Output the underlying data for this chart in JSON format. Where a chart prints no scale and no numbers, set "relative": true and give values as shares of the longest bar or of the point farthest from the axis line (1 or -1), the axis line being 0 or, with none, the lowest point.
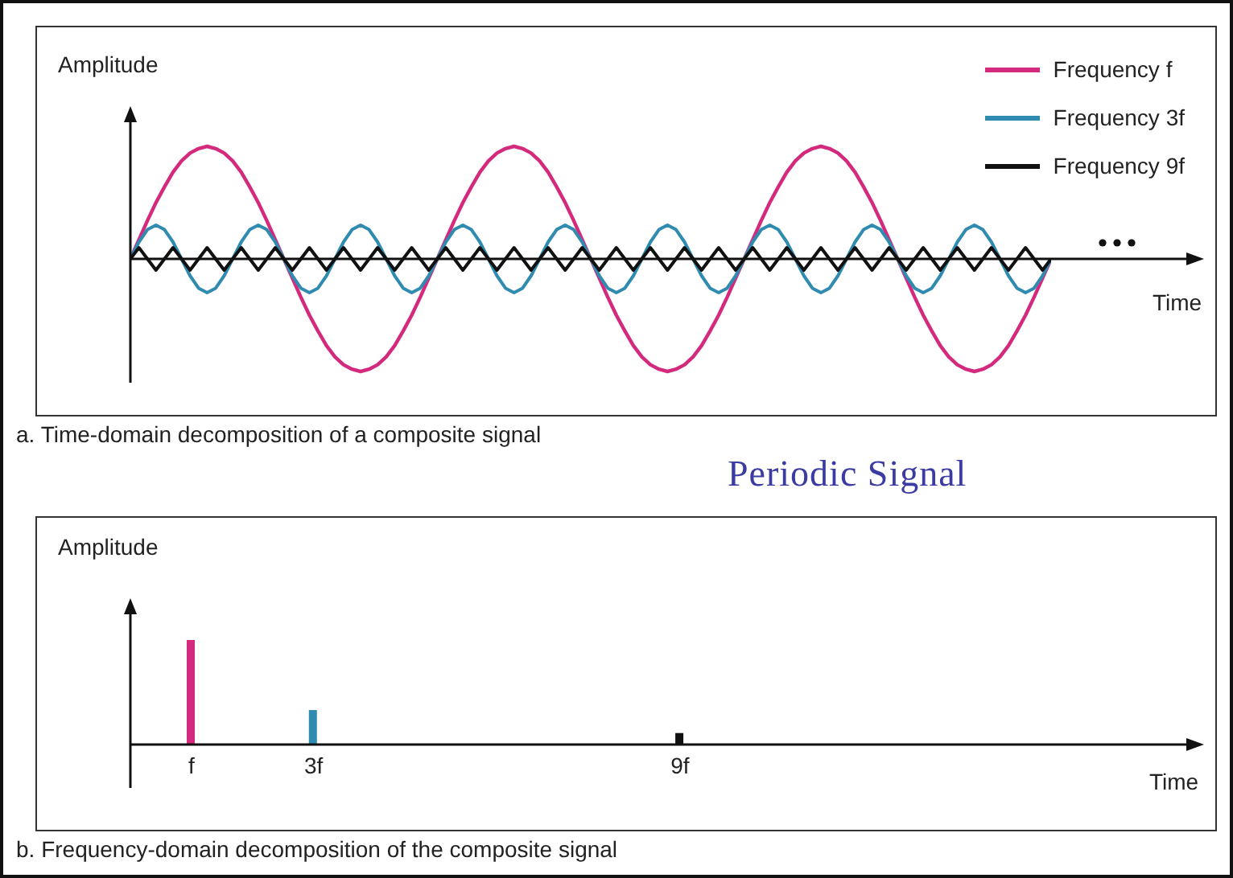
{
  "chart_data": [
    {
      "type": "line",
      "relative": true,
      "xlabel": "Time",
      "ylabel": "Amplitude",
      "tick_labels": false,
      "legend": "top right",
      "annotations": [
        "a. Time-domain decomposition of a composite signal"
      ],
      "categories": [
        null,
        null,
        null,
        null,
        null,
        null,
        null,
        null,
        null,
        null,
        null,
        null,
        null,
        null,
        null,
        null,
        null,
        null,
        null,
        null,
        null,
        null,
        null,
        null,
        null,
        null,
        null,
        null,
        null,
        null,
        null,
        null,
        null,
        null,
        null,
        null,
        null,
        null,
        null,
        null,
        null,
        null,
        null,
        null,
        null,
        null,
        null,
        null,
        null,
        null,
        null,
        null,
        null,
        null,
        null,
        null,
        null,
        null,
        null,
        null,
        null,
        null,
        null,
        null,
        null,
        null,
        null,
        null,
        null,
        null,
        null,
        null,
        null,
        null,
        null,
        null,
        null,
        null,
        null,
        null,
        null,
        null,
        null,
        null,
        null,
        null,
        null,
        null,
        null,
        null,
        null,
        null,
        null,
        null,
        null,
        null,
        null,
        null,
        null,
        null,
        null,
        null,
        null,
        null,
        null,
        null,
        null,
        null,
        null
      ],
      "series": [
        {
          "name": "Frequency f",
          "color": "#d42a7e",
          "values": [
            0,
            0.17,
            0.34,
            0.5,
            0.64,
            0.77,
            0.87,
            0.94,
            0.98,
            1,
            0.98,
            0.94,
            0.87,
            0.77,
            0.64,
            0.5,
            0.34,
            0.17,
            0,
            -0.17,
            -0.34,
            -0.5,
            -0.64,
            -0.77,
            -0.87,
            -0.94,
            -0.98,
            -1,
            -0.98,
            -0.94,
            -0.87,
            -0.77,
            -0.64,
            -0.5,
            -0.34,
            -0.17,
            0,
            0.17,
            0.34,
            0.5,
            0.64,
            0.77,
            0.87,
            0.94,
            0.98,
            1,
            0.98,
            0.94,
            0.87,
            0.77,
            0.64,
            0.5,
            0.34,
            0.17,
            0,
            -0.17,
            -0.34,
            -0.5,
            -0.64,
            -0.77,
            -0.87,
            -0.94,
            -0.98,
            -1,
            -0.98,
            -0.94,
            -0.87,
            -0.77,
            -0.64,
            -0.5,
            -0.34,
            -0.17,
            0,
            0.17,
            0.34,
            0.5,
            0.64,
            0.77,
            0.87,
            0.94,
            0.98,
            1,
            0.98,
            0.94,
            0.87,
            0.77,
            0.64,
            0.5,
            0.34,
            0.17,
            0,
            -0.17,
            -0.34,
            -0.5,
            -0.64,
            -0.77,
            -0.87,
            -0.94,
            -0.98,
            -1,
            -0.98,
            -0.94,
            -0.87,
            -0.77,
            -0.64,
            -0.5,
            -0.34,
            -0.17,
            0
          ]
        },
        {
          "name": "Frequency 3f",
          "color": "#2f8bb0",
          "values": [
            0,
            0.15,
            0.26,
            0.3,
            0.26,
            0.15,
            0,
            -0.15,
            -0.26,
            -0.3,
            -0.26,
            -0.15,
            0,
            0.15,
            0.26,
            0.3,
            0.26,
            0.15,
            0,
            -0.15,
            -0.26,
            -0.3,
            -0.26,
            -0.15,
            0,
            0.15,
            0.26,
            0.3,
            0.26,
            0.15,
            0,
            -0.15,
            -0.26,
            -0.3,
            -0.26,
            -0.15,
            0,
            0.15,
            0.26,
            0.3,
            0.26,
            0.15,
            0,
            -0.15,
            -0.26,
            -0.3,
            -0.26,
            -0.15,
            0,
            0.15,
            0.26,
            0.3,
            0.26,
            0.15,
            0,
            -0.15,
            -0.26,
            -0.3,
            -0.26,
            -0.15,
            0,
            0.15,
            0.26,
            0.3,
            0.26,
            0.15,
            0,
            -0.15,
            -0.26,
            -0.3,
            -0.26,
            -0.15,
            0,
            0.15,
            0.26,
            0.3,
            0.26,
            0.15,
            0,
            -0.15,
            -0.26,
            -0.3,
            -0.26,
            -0.15,
            0,
            0.15,
            0.26,
            0.3,
            0.26,
            0.15,
            0,
            -0.15,
            -0.26,
            -0.3,
            -0.26,
            -0.15,
            0,
            0.15,
            0.26,
            0.3,
            0.26,
            0.15,
            0,
            -0.15,
            -0.26,
            -0.3,
            -0.26,
            -0.15,
            0
          ]
        },
        {
          "name": "Frequency 9f",
          "color": "#111111",
          "values": [
            0,
            0.1,
            0,
            -0.1,
            0,
            0.1,
            0,
            -0.1,
            0,
            0.1,
            0,
            -0.1,
            0,
            0.1,
            0,
            -0.1,
            0,
            0.1,
            0,
            -0.1,
            0,
            0.1,
            0,
            -0.1,
            0,
            0.1,
            0,
            -0.1,
            0,
            0.1,
            0,
            -0.1,
            0,
            0.1,
            0,
            -0.1,
            0,
            0.1,
            0,
            -0.1,
            0,
            0.1,
            0,
            -0.1,
            0,
            0.1,
            0,
            -0.1,
            0,
            0.1,
            0,
            -0.1,
            0,
            0.1,
            0,
            -0.1,
            0,
            0.1,
            0,
            -0.1,
            0,
            0.1,
            0,
            -0.1,
            0,
            0.1,
            0,
            -0.1,
            0,
            0.1,
            0,
            -0.1,
            0,
            0.1,
            0,
            -0.1,
            0,
            0.1,
            0,
            -0.1,
            0,
            0.1,
            0,
            -0.1,
            0,
            0.1,
            0,
            -0.1,
            0,
            0.1,
            0,
            -0.1,
            0,
            0.1,
            0,
            -0.1,
            0,
            0.1,
            0,
            -0.1,
            0,
            0.1,
            0,
            -0.1,
            0,
            0.1,
            0,
            -0.1,
            0
          ]
        }
      ]
    },
    {
      "type": "bar",
      "relative": true,
      "title": "Periodic Signal",
      "xlabel": "Time",
      "ylabel": "Amplitude",
      "x": [
        1,
        3,
        9
      ],
      "values": [
        1,
        0.33,
        0.11
      ],
      "colors": [
        "#d42a7e",
        "#2f8bb0",
        "#111111"
      ],
      "xlim": [
        0,
        17.5
      ],
      "xticks": [
        {
          "value": 1,
          "label": "f"
        },
        {
          "value": 3,
          "label": "3f"
        },
        {
          "value": 9,
          "label": "9f"
        }
      ],
      "tick_labels": "x",
      "annotations": [
        "b. Frequency-domain decomposition of the composite signal"
      ]
    }
  ]
}
